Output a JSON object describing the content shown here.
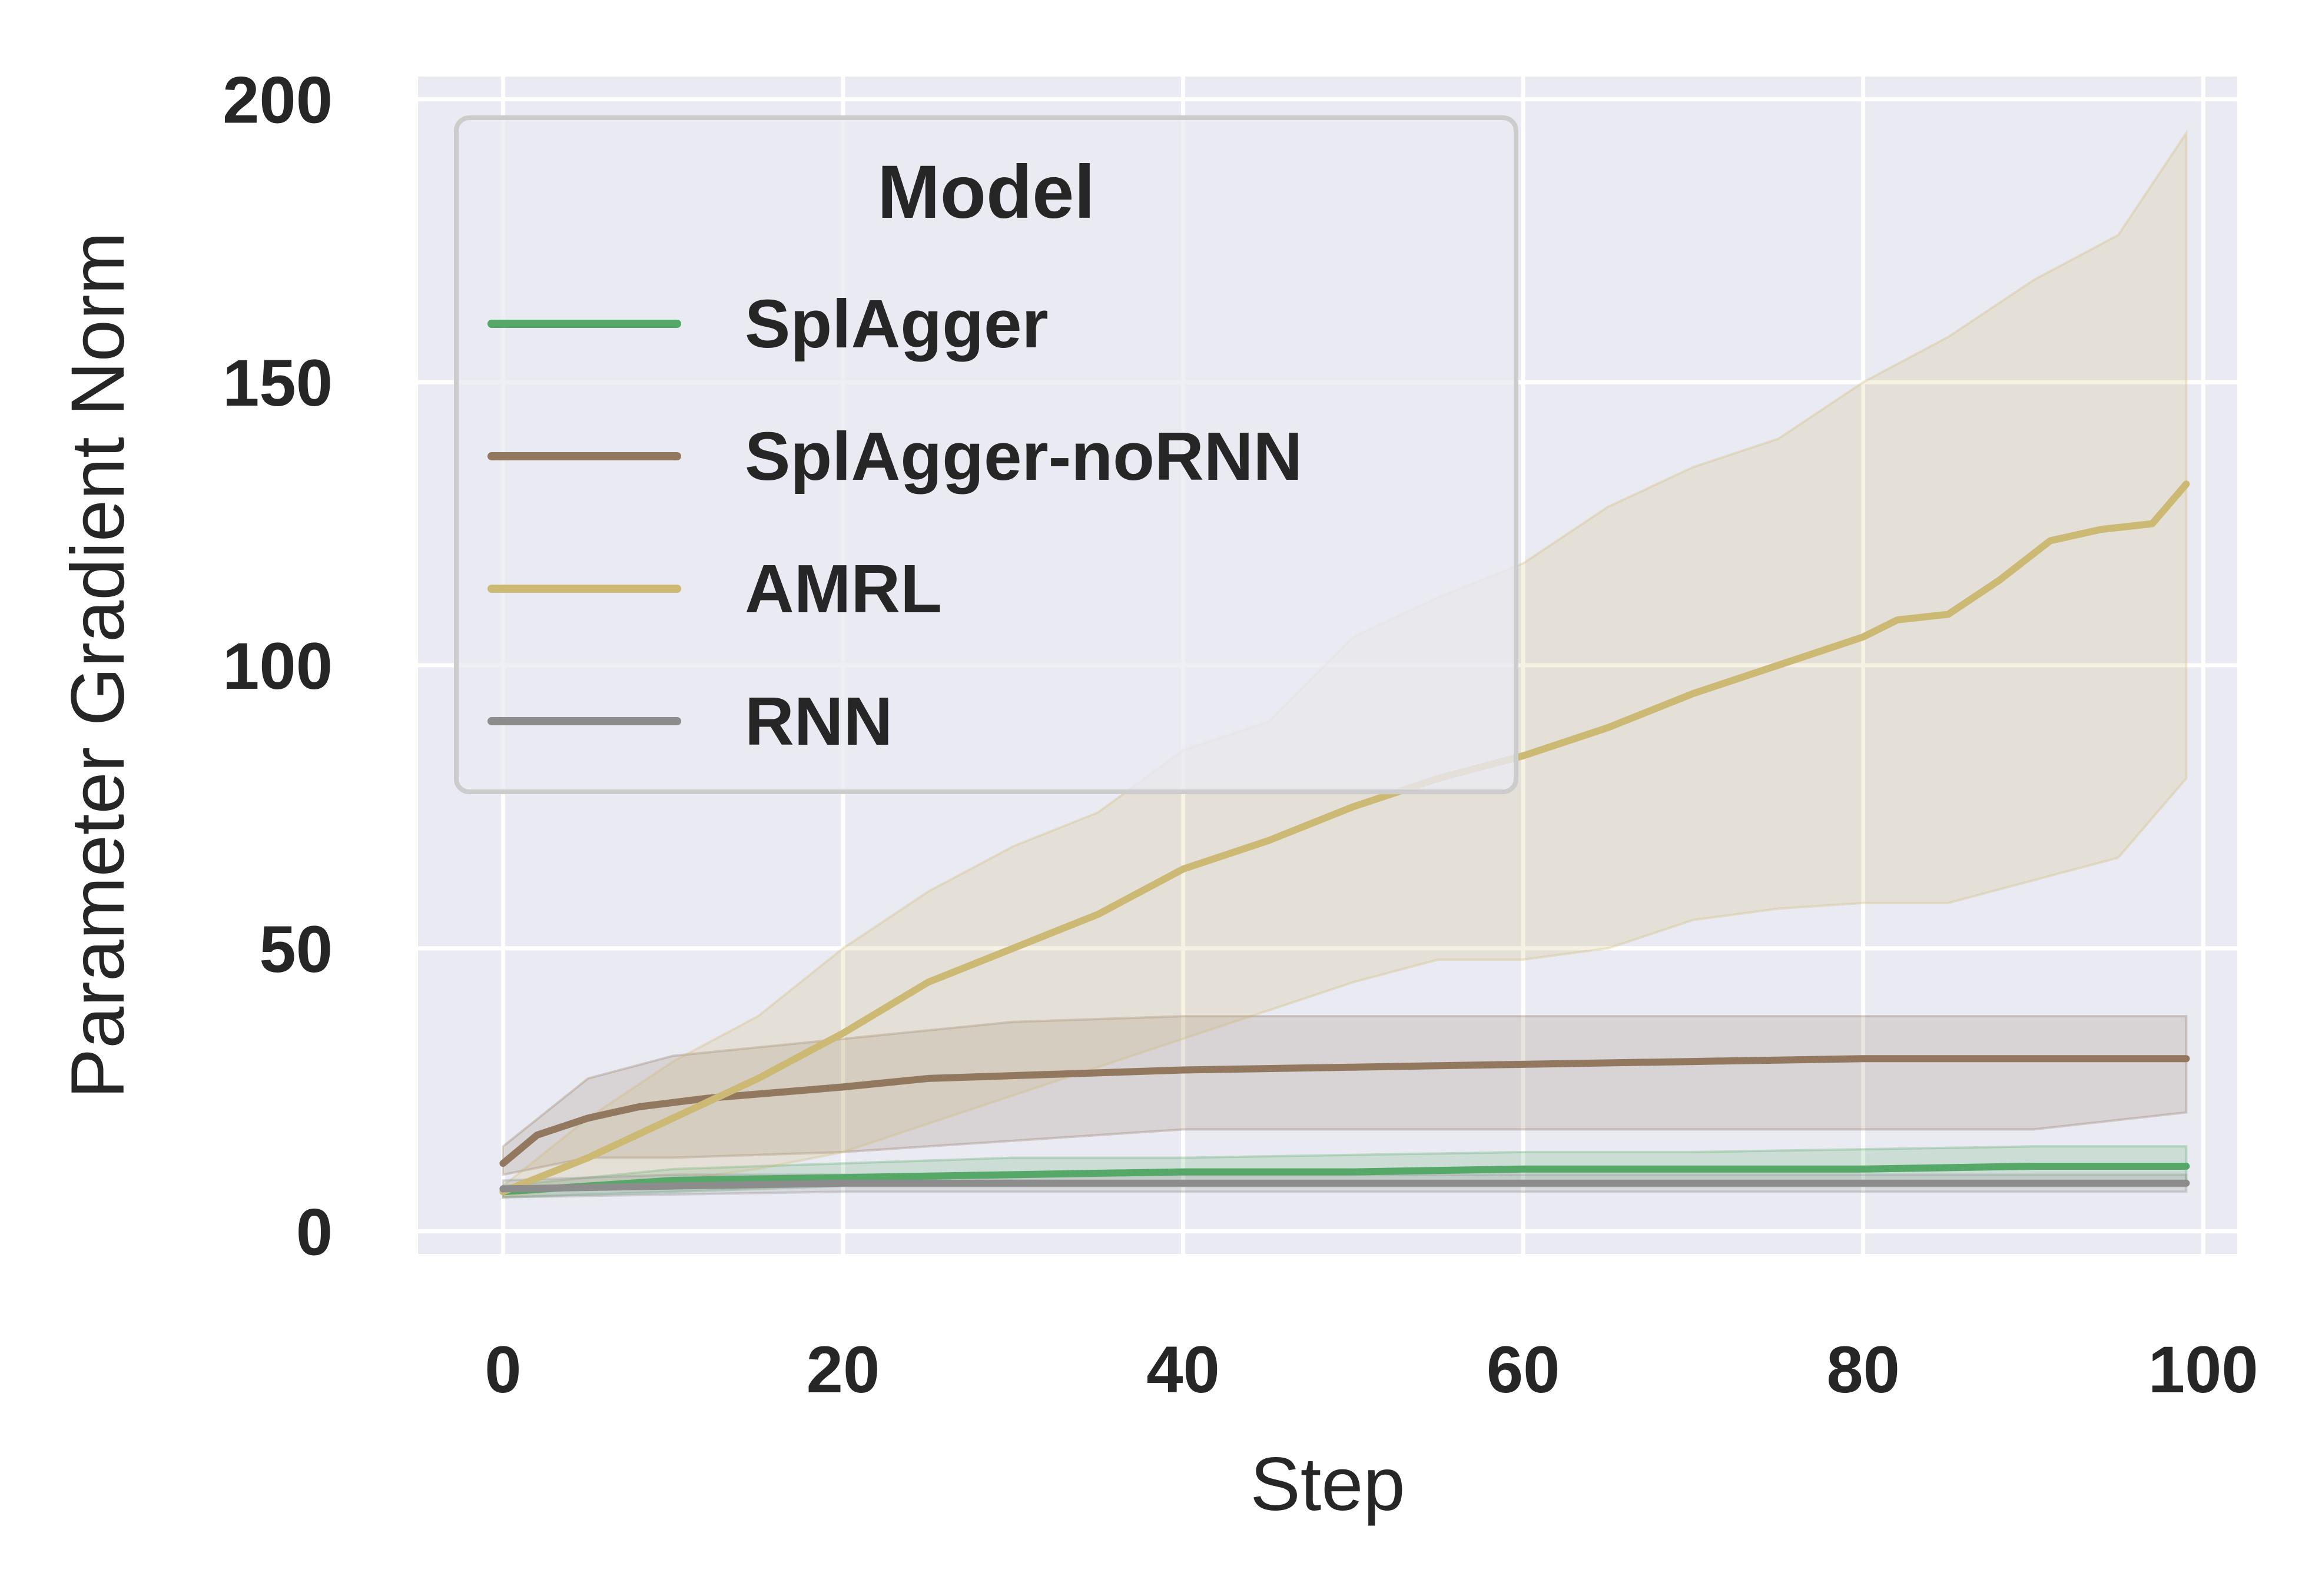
{
  "chart_data": {
    "type": "line",
    "title": "",
    "xlabel": "Step",
    "ylabel": "Parameter Gradient Norm",
    "xlim": [
      -5,
      102
    ],
    "ylim": [
      -4,
      204
    ],
    "xticks": [
      0,
      20,
      40,
      60,
      80,
      100
    ],
    "yticks": [
      0,
      50,
      100,
      150,
      200
    ],
    "grid": true,
    "legend": {
      "title": "Model",
      "position": "upper-left"
    },
    "series": [
      {
        "name": "SplAgger",
        "color": "#55a868",
        "points": [
          [
            0,
            7
          ],
          [
            10,
            9
          ],
          [
            20,
            9.5
          ],
          [
            30,
            10
          ],
          [
            40,
            10.5
          ],
          [
            50,
            10.5
          ],
          [
            60,
            11
          ],
          [
            70,
            11
          ],
          [
            80,
            11
          ],
          [
            90,
            11.5
          ],
          [
            99,
            11.5
          ]
        ],
        "band": [
          [
            0,
            6,
            8
          ],
          [
            10,
            7,
            11
          ],
          [
            20,
            8,
            12
          ],
          [
            30,
            8,
            13
          ],
          [
            40,
            8,
            13
          ],
          [
            50,
            8,
            13.5
          ],
          [
            60,
            8,
            14
          ],
          [
            70,
            8,
            14
          ],
          [
            80,
            8,
            14.5
          ],
          [
            90,
            8,
            15
          ],
          [
            99,
            8,
            15
          ]
        ]
      },
      {
        "name": "SplAgger-noRNN",
        "color": "#937860",
        "points": [
          [
            0,
            12
          ],
          [
            2,
            17
          ],
          [
            5,
            20
          ],
          [
            8,
            22
          ],
          [
            12,
            23.5
          ],
          [
            16,
            24.5
          ],
          [
            20,
            25.5
          ],
          [
            25,
            27
          ],
          [
            30,
            27.5
          ],
          [
            40,
            28.5
          ],
          [
            50,
            29
          ],
          [
            60,
            29.5
          ],
          [
            70,
            30
          ],
          [
            80,
            30.5
          ],
          [
            90,
            30.5
          ],
          [
            99,
            30.5
          ]
        ],
        "band": [
          [
            0,
            10,
            15
          ],
          [
            5,
            13,
            27
          ],
          [
            10,
            13,
            31
          ],
          [
            20,
            14,
            34
          ],
          [
            30,
            16,
            37
          ],
          [
            40,
            18,
            38
          ],
          [
            50,
            18,
            38
          ],
          [
            60,
            18,
            38
          ],
          [
            70,
            18,
            38
          ],
          [
            80,
            18,
            38
          ],
          [
            90,
            18,
            38
          ],
          [
            99,
            21,
            38
          ]
        ]
      },
      {
        "name": "AMRL",
        "color": "#ccb974",
        "points": [
          [
            0,
            7
          ],
          [
            5,
            13
          ],
          [
            10,
            20
          ],
          [
            15,
            27
          ],
          [
            20,
            35
          ],
          [
            25,
            44
          ],
          [
            30,
            50
          ],
          [
            35,
            56
          ],
          [
            40,
            64
          ],
          [
            45,
            69
          ],
          [
            50,
            75
          ],
          [
            55,
            80
          ],
          [
            60,
            84
          ],
          [
            65,
            89
          ],
          [
            70,
            95
          ],
          [
            75,
            100
          ],
          [
            80,
            105
          ],
          [
            82,
            108
          ],
          [
            85,
            109
          ],
          [
            88,
            115
          ],
          [
            91,
            122
          ],
          [
            94,
            124
          ],
          [
            97,
            125
          ],
          [
            99,
            132
          ]
        ],
        "band": [
          [
            0,
            6,
            8
          ],
          [
            5,
            8,
            20
          ],
          [
            10,
            9,
            30
          ],
          [
            15,
            11,
            38
          ],
          [
            20,
            14,
            50
          ],
          [
            25,
            19,
            60
          ],
          [
            30,
            24,
            68
          ],
          [
            35,
            29,
            74
          ],
          [
            40,
            34,
            85
          ],
          [
            45,
            39,
            90
          ],
          [
            50,
            44,
            105
          ],
          [
            55,
            48,
            112
          ],
          [
            60,
            48,
            118
          ],
          [
            65,
            50,
            128
          ],
          [
            70,
            55,
            135
          ],
          [
            75,
            57,
            140
          ],
          [
            80,
            58,
            150
          ],
          [
            85,
            58,
            158
          ],
          [
            90,
            62,
            168
          ],
          [
            95,
            66,
            176
          ],
          [
            99,
            80,
            194
          ]
        ]
      },
      {
        "name": "RNN",
        "color": "#8c8c8c",
        "points": [
          [
            0,
            7.5
          ],
          [
            10,
            8
          ],
          [
            20,
            8.5
          ],
          [
            30,
            8.5
          ],
          [
            40,
            8.5
          ],
          [
            50,
            8.5
          ],
          [
            60,
            8.5
          ],
          [
            70,
            8.5
          ],
          [
            80,
            8.5
          ],
          [
            90,
            8.5
          ],
          [
            99,
            8.5
          ]
        ],
        "band": [
          [
            0,
            6,
            9
          ],
          [
            10,
            6.5,
            10
          ],
          [
            20,
            7,
            10
          ],
          [
            30,
            7,
            10
          ],
          [
            40,
            7,
            10
          ],
          [
            50,
            7,
            10
          ],
          [
            60,
            7,
            10
          ],
          [
            70,
            7,
            10
          ],
          [
            80,
            7,
            10
          ],
          [
            90,
            7,
            10
          ],
          [
            99,
            7,
            10
          ]
        ]
      }
    ]
  }
}
